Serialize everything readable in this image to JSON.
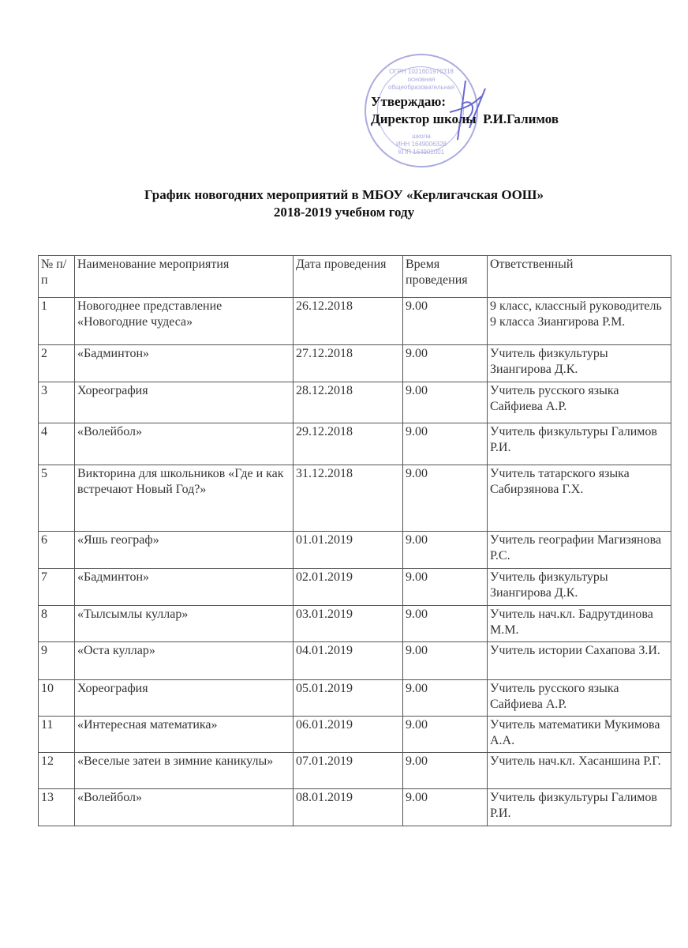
{
  "approval": {
    "line1": "Утверждаю:",
    "line2": "Директор школы  Р.И.Галимов"
  },
  "stamp": {
    "lines": [
      "ОГРН 1021601976318",
      "основная",
      "общеобразовательная",
      "школа",
      "ИНН 1649006328",
      "КПП 164901001"
    ]
  },
  "title": {
    "line1": "График новогодних мероприятий в МБОУ «Керлигачская ООШ»",
    "line2": "2018-2019 учебном году"
  },
  "table": {
    "headers": [
      "№ п/п",
      "Наименование мероприятия",
      "Дата проведения",
      "Время проведения",
      "Ответственный"
    ],
    "rows": [
      [
        "1",
        "Новогоднее представление «Новогодние чудеса»",
        "26.12.2018",
        "9.00",
        "9 класс, классный руководитель 9 класса Зиангирова Р.М."
      ],
      [
        "2",
        "«Бадминтон»",
        "27.12.2018",
        "9.00",
        "Учитель физкультуры Зиангирова Д.К."
      ],
      [
        "3",
        "Хореография",
        "28.12.2018",
        "9.00",
        "Учитель русского языка Сайфиева А.Р."
      ],
      [
        "4",
        "«Волейбол»",
        "29.12.2018",
        "9.00",
        "Учитель физкультуры Галимов Р.И."
      ],
      [
        "5",
        "Викторина для школьников «Где и как встречают Новый Год?»",
        "31.12.2018",
        "9.00",
        "Учитель татарского языка Сабирзянова Г.Х."
      ],
      [
        "6",
        "«Яшь географ»",
        "01.01.2019",
        "9.00",
        "Учитель географии Магизянова Р.С."
      ],
      [
        "7",
        "«Бадминтон»",
        "02.01.2019",
        "9.00",
        "Учитель физкультуры Зиангирова Д.К."
      ],
      [
        "8",
        "«Тылсымлы куллар»",
        "03.01.2019",
        "9.00",
        "Учитель нач.кл. Бадрутдинова М.М."
      ],
      [
        "9",
        "«Оста куллар»",
        "04.01.2019",
        "9.00",
        "Учитель истории Сахапова З.И."
      ],
      [
        "10",
        "Хореография",
        "05.01.2019",
        "9.00",
        "Учитель русского языка Сайфиева А.Р."
      ],
      [
        "11",
        "«Интересная математика»",
        "06.01.2019",
        "9.00",
        "Учитель математики Мукимова А.А."
      ],
      [
        "12",
        "«Веселые затеи в зимние каникулы»",
        "07.01.2019",
        "9.00",
        "Учитель нач.кл. Хасаншина Р.Г."
      ],
      [
        "13",
        "«Волейбол»",
        "08.01.2019",
        "9.00",
        "Учитель физкультуры Галимов Р.И."
      ]
    ]
  }
}
